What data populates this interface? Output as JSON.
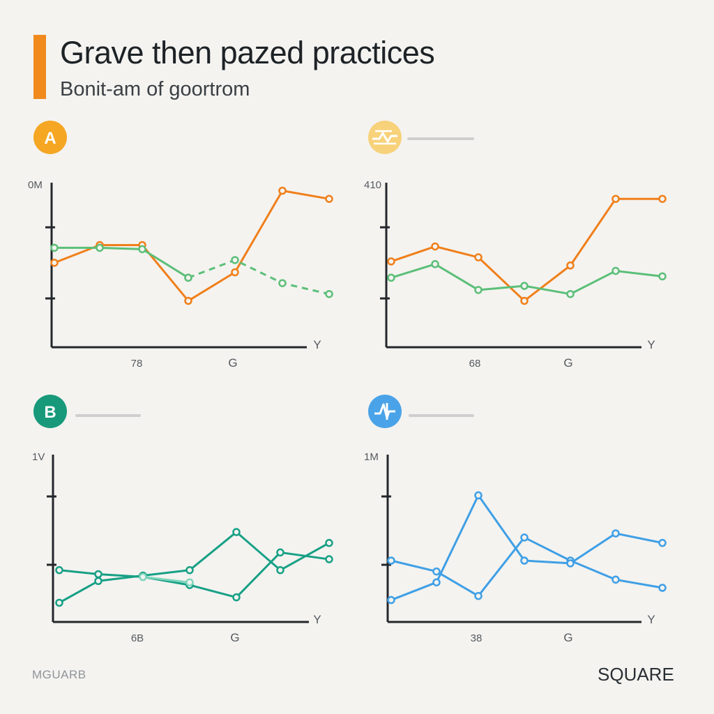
{
  "header": {
    "title": "Grave then pazed practices",
    "subtitle": "Bonit-am of goortrom",
    "accent_color": "#f08a1c"
  },
  "footer": {
    "left_text": "MGUARB",
    "right_text": "SQUARE"
  },
  "chart_data": [
    {
      "type": "line",
      "badge": {
        "label": "A",
        "color": "#f5a623",
        "icon": ""
      },
      "header_line": false,
      "y_top_label": "0M",
      "x_tick_labels": [
        "78",
        "G"
      ],
      "x_axis_end_label": "Y",
      "ylim": [
        0,
        100
      ],
      "series": [
        {
          "color": "#f07f1a",
          "style": "solid",
          "x": [
            0,
            1,
            2,
            3,
            4,
            5,
            6
          ],
          "values": [
            57,
            70,
            70,
            29,
            50,
            110,
            104
          ]
        },
        {
          "color": "#5bbf78",
          "style": "solid",
          "x": [
            0,
            1,
            2,
            3
          ],
          "values": [
            68,
            68,
            67,
            46
          ]
        },
        {
          "color": "#5bbf78",
          "style": "dashed",
          "x": [
            3,
            4,
            5,
            6
          ],
          "values": [
            46,
            59,
            42,
            34
          ]
        }
      ]
    },
    {
      "type": "line",
      "badge": {
        "label": "",
        "color": "#f7d27a",
        "icon": "wave-chart-icon"
      },
      "header_line": true,
      "y_top_label": "410",
      "x_tick_labels": [
        "68",
        "G"
      ],
      "x_axis_end_label": "Y",
      "ylim": [
        0,
        100
      ],
      "series": [
        {
          "color": "#f07f1a",
          "style": "solid",
          "x": [
            0,
            1,
            2,
            3,
            4,
            5,
            6
          ],
          "values": [
            58,
            69,
            61,
            29,
            55,
            104,
            104
          ]
        },
        {
          "color": "#5bbf78",
          "style": "solid",
          "x": [
            0,
            1,
            2,
            3,
            4,
            5,
            6
          ],
          "values": [
            46,
            56,
            37,
            40,
            34,
            51,
            47
          ]
        }
      ]
    },
    {
      "type": "line",
      "badge": {
        "label": "B",
        "color": "#17997a",
        "icon": ""
      },
      "header_line": true,
      "y_top_label": "1V",
      "x_tick_labels": [
        "6B",
        "G"
      ],
      "x_axis_end_label": "Y",
      "ylim": [
        0,
        100
      ],
      "series": [
        {
          "color": "#17a085",
          "style": "solid",
          "x": [
            0,
            1,
            2,
            3,
            4,
            5,
            6
          ],
          "values": [
            9,
            25,
            29,
            33,
            61,
            33,
            53
          ]
        },
        {
          "color": "#17a085",
          "style": "solid",
          "x": [
            0,
            1,
            2,
            3,
            4,
            5,
            6
          ],
          "values": [
            33,
            30,
            28,
            22,
            13,
            46,
            41
          ]
        },
        {
          "color": "#7fd6bd",
          "style": "solid",
          "x": [
            2,
            3
          ],
          "values": [
            28,
            24
          ]
        }
      ]
    },
    {
      "type": "line",
      "badge": {
        "label": "",
        "color": "#4aa3e8",
        "icon": "pulse-chart-icon"
      },
      "header_line": true,
      "y_top_label": "1M",
      "x_tick_labels": [
        "38",
        "G"
      ],
      "x_axis_end_label": "Y",
      "ylim": [
        0,
        100
      ],
      "series": [
        {
          "color": "#3f9fe5",
          "style": "solid",
          "x": [
            0,
            1,
            2,
            3,
            4,
            5,
            6
          ],
          "values": [
            40,
            32,
            14,
            57,
            40,
            26,
            20
          ]
        },
        {
          "color": "#3f9fe5",
          "style": "solid",
          "x": [
            0,
            1,
            2,
            3,
            4,
            5,
            6
          ],
          "values": [
            11,
            24,
            88,
            40,
            38,
            60,
            53
          ]
        }
      ]
    }
  ]
}
